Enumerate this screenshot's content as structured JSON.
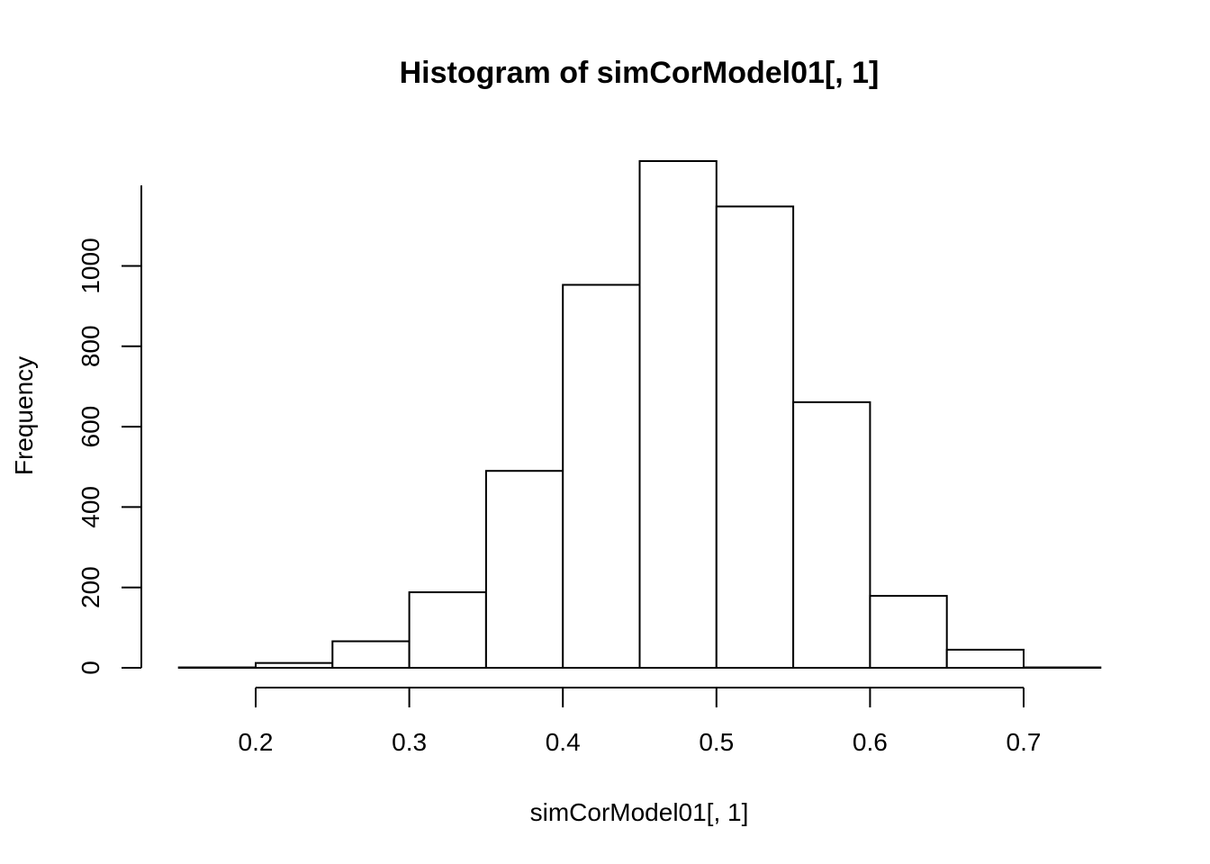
{
  "chart_data": {
    "type": "bar",
    "title": "Histogram of simCorModel01[, 1]",
    "xlabel": "simCorModel01[, 1]",
    "ylabel": "Frequency",
    "bins": [
      {
        "x0": 0.15,
        "x1": 0.2,
        "count": 1
      },
      {
        "x0": 0.2,
        "x1": 0.25,
        "count": 12
      },
      {
        "x0": 0.25,
        "x1": 0.3,
        "count": 66
      },
      {
        "x0": 0.3,
        "x1": 0.35,
        "count": 188
      },
      {
        "x0": 0.35,
        "x1": 0.4,
        "count": 490
      },
      {
        "x0": 0.4,
        "x1": 0.45,
        "count": 953
      },
      {
        "x0": 0.45,
        "x1": 0.5,
        "count": 1261
      },
      {
        "x0": 0.5,
        "x1": 0.55,
        "count": 1148
      },
      {
        "x0": 0.55,
        "x1": 0.6,
        "count": 661
      },
      {
        "x0": 0.6,
        "x1": 0.65,
        "count": 179
      },
      {
        "x0": 0.65,
        "x1": 0.7,
        "count": 45
      },
      {
        "x0": 0.7,
        "x1": 0.75,
        "count": 1
      }
    ],
    "x_ticks": [
      0.2,
      0.3,
      0.4,
      0.5,
      0.6,
      0.7
    ],
    "x_tick_labels": [
      "0.2",
      "0.3",
      "0.4",
      "0.5",
      "0.6",
      "0.7"
    ],
    "y_ticks": [
      0,
      200,
      400,
      600,
      800,
      1000
    ],
    "y_tick_labels": [
      "0",
      "200",
      "400",
      "600",
      "800",
      "1000"
    ],
    "xlim": [
      0.15,
      0.75
    ],
    "ylim": [
      0,
      1261
    ],
    "grid": false,
    "colors": {
      "bar_fill": "#ffffff",
      "bar_stroke": "#000000"
    }
  }
}
